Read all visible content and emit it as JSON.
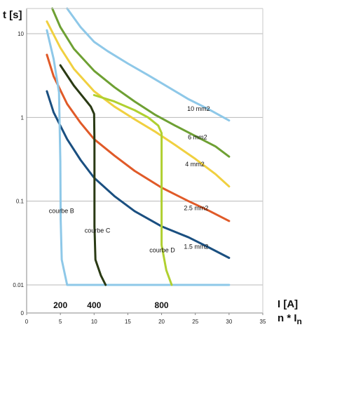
{
  "chart_data": {
    "type": "line",
    "y_scale": "log",
    "ylabel": "t [s]",
    "xlabel": "n * In",
    "secondary_xlabel": "I [A]",
    "xlim": [
      0,
      35
    ],
    "ylim": [
      0.01,
      20
    ],
    "x_ticks": [
      "0",
      "5",
      "10",
      "15",
      "20",
      "25",
      "30",
      "35"
    ],
    "y_ticks": [
      {
        "v": 0.01,
        "label": "0.01"
      },
      {
        "v": 0.1,
        "label": "0.1"
      },
      {
        "v": 1,
        "label": "1"
      },
      {
        "v": 10,
        "label": "10"
      }
    ],
    "y_zero_label": "0",
    "current_labels": [
      {
        "x": 5,
        "text": "200"
      },
      {
        "x": 10,
        "text": "400"
      },
      {
        "x": 20,
        "text": "800"
      }
    ],
    "grid": true,
    "series": [
      {
        "name": "10 mm2",
        "color": "#8ec8e8",
        "label_at": [
          23.8,
          1.2
        ],
        "points": [
          [
            6,
            20
          ],
          [
            8,
            12
          ],
          [
            10,
            8
          ],
          [
            12,
            6.2
          ],
          [
            15,
            4.4
          ],
          [
            18,
            3.2
          ],
          [
            21,
            2.3
          ],
          [
            24,
            1.65
          ],
          [
            27,
            1.25
          ],
          [
            30,
            0.92
          ]
        ]
      },
      {
        "name": "6 mm2",
        "color": "#6ea033",
        "label_at": [
          23.9,
          0.55
        ],
        "points": [
          [
            3.8,
            20
          ],
          [
            5,
            12
          ],
          [
            7,
            6.6
          ],
          [
            10,
            3.6
          ],
          [
            13,
            2.3
          ],
          [
            16,
            1.55
          ],
          [
            19,
            1.08
          ],
          [
            22,
            0.8
          ],
          [
            25,
            0.6
          ],
          [
            28,
            0.45
          ],
          [
            30,
            0.34
          ]
        ]
      },
      {
        "name": "4 mm2",
        "color": "#f0d040",
        "label_at": [
          23.5,
          0.26
        ],
        "points": [
          [
            3,
            14
          ],
          [
            5,
            6.8
          ],
          [
            7,
            3.8
          ],
          [
            10,
            2.05
          ],
          [
            13,
            1.35
          ],
          [
            16,
            0.95
          ],
          [
            19,
            0.68
          ],
          [
            22,
            0.47
          ],
          [
            25,
            0.32
          ],
          [
            28,
            0.21
          ],
          [
            30,
            0.15
          ]
        ]
      },
      {
        "name": "2.5 mm2",
        "color": "#e05a28",
        "label_at": [
          23.3,
          0.078
        ],
        "points": [
          [
            3,
            5.6
          ],
          [
            4,
            3.1
          ],
          [
            6,
            1.45
          ],
          [
            8,
            0.86
          ],
          [
            10,
            0.55
          ],
          [
            13,
            0.35
          ],
          [
            16,
            0.23
          ],
          [
            20,
            0.145
          ],
          [
            24,
            0.1
          ],
          [
            27,
            0.077
          ],
          [
            30,
            0.058
          ]
        ]
      },
      {
        "name": "1.5 mm2",
        "color": "#1a4f80",
        "label_at": [
          23.3,
          0.027
        ],
        "points": [
          [
            3,
            2.05
          ],
          [
            4,
            1.15
          ],
          [
            6,
            0.55
          ],
          [
            8,
            0.31
          ],
          [
            10,
            0.19
          ],
          [
            13,
            0.115
          ],
          [
            16,
            0.076
          ],
          [
            20,
            0.05
          ],
          [
            24,
            0.037
          ],
          [
            27,
            0.028
          ],
          [
            30,
            0.021
          ]
        ]
      },
      {
        "name": "courbe B",
        "color": "#8ec8e8",
        "label_at": [
          3.3,
          0.072
        ],
        "points": [
          [
            3,
            11
          ],
          [
            4,
            5
          ],
          [
            4.8,
            2
          ],
          [
            5,
            0.3
          ],
          [
            5.05,
            0.06
          ],
          [
            5.2,
            0.02
          ],
          [
            6,
            0.01
          ],
          [
            30,
            0.01
          ]
        ]
      },
      {
        "name": "courbe C",
        "color": "#2a3a14",
        "label_at": [
          8.6,
          0.042
        ],
        "points": [
          [
            5,
            4.2
          ],
          [
            7,
            2.4
          ],
          [
            8.5,
            1.7
          ],
          [
            9.5,
            1.35
          ],
          [
            10,
            1.1
          ],
          [
            10.05,
            0.5
          ],
          [
            10.05,
            0.05
          ],
          [
            10.2,
            0.02
          ],
          [
            11,
            0.013
          ],
          [
            11.7,
            0.01
          ]
        ]
      },
      {
        "name": "courbe D",
        "color": "#b0d030",
        "label_at": [
          18.2,
          0.0245
        ],
        "points": [
          [
            10,
            1.85
          ],
          [
            13,
            1.55
          ],
          [
            16,
            1.22
          ],
          [
            18,
            1.0
          ],
          [
            19.5,
            0.8
          ],
          [
            20,
            0.65
          ],
          [
            20,
            0.03
          ],
          [
            20.7,
            0.015
          ],
          [
            21.5,
            0.01
          ]
        ]
      }
    ]
  }
}
